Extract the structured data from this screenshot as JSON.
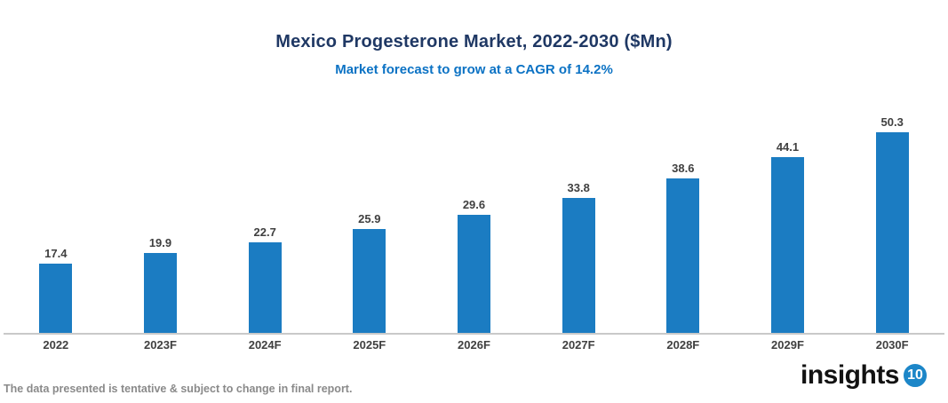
{
  "chart": {
    "title": "Mexico Progesterone Market, 2022-2030 ($Mn)",
    "subtitle": "Market forecast to grow at a CAGR of 14.2%"
  },
  "chart_data": {
    "type": "bar",
    "title": "Mexico Progesterone Market, 2022-2030 ($Mn)",
    "subtitle": "Market forecast to grow at a CAGR of 14.2%",
    "categories": [
      "2022",
      "2023F",
      "2024F",
      "2025F",
      "2026F",
      "2027F",
      "2028F",
      "2029F",
      "2030F"
    ],
    "values": [
      17.4,
      19.9,
      22.7,
      25.9,
      29.6,
      33.8,
      38.6,
      44.1,
      50.3
    ],
    "xlabel": "",
    "ylabel": "",
    "ylim": [
      0,
      55
    ],
    "grid": false,
    "legend": false,
    "data_labels": true,
    "bar_color": "#1B7CC2",
    "cagr": "14.2%"
  },
  "colors": {
    "bar": "#1B7CC2",
    "title": "#1F3864",
    "subtitle": "#0B72C4",
    "axis_line": "#C9C9C9",
    "labels": "#404040",
    "footer": "#8A8A8A",
    "logo_badge": "#1C86C8"
  },
  "footer": {
    "note": "The data presented is tentative & subject to change in final report."
  },
  "logo": {
    "text": "insights",
    "badge": "10"
  }
}
